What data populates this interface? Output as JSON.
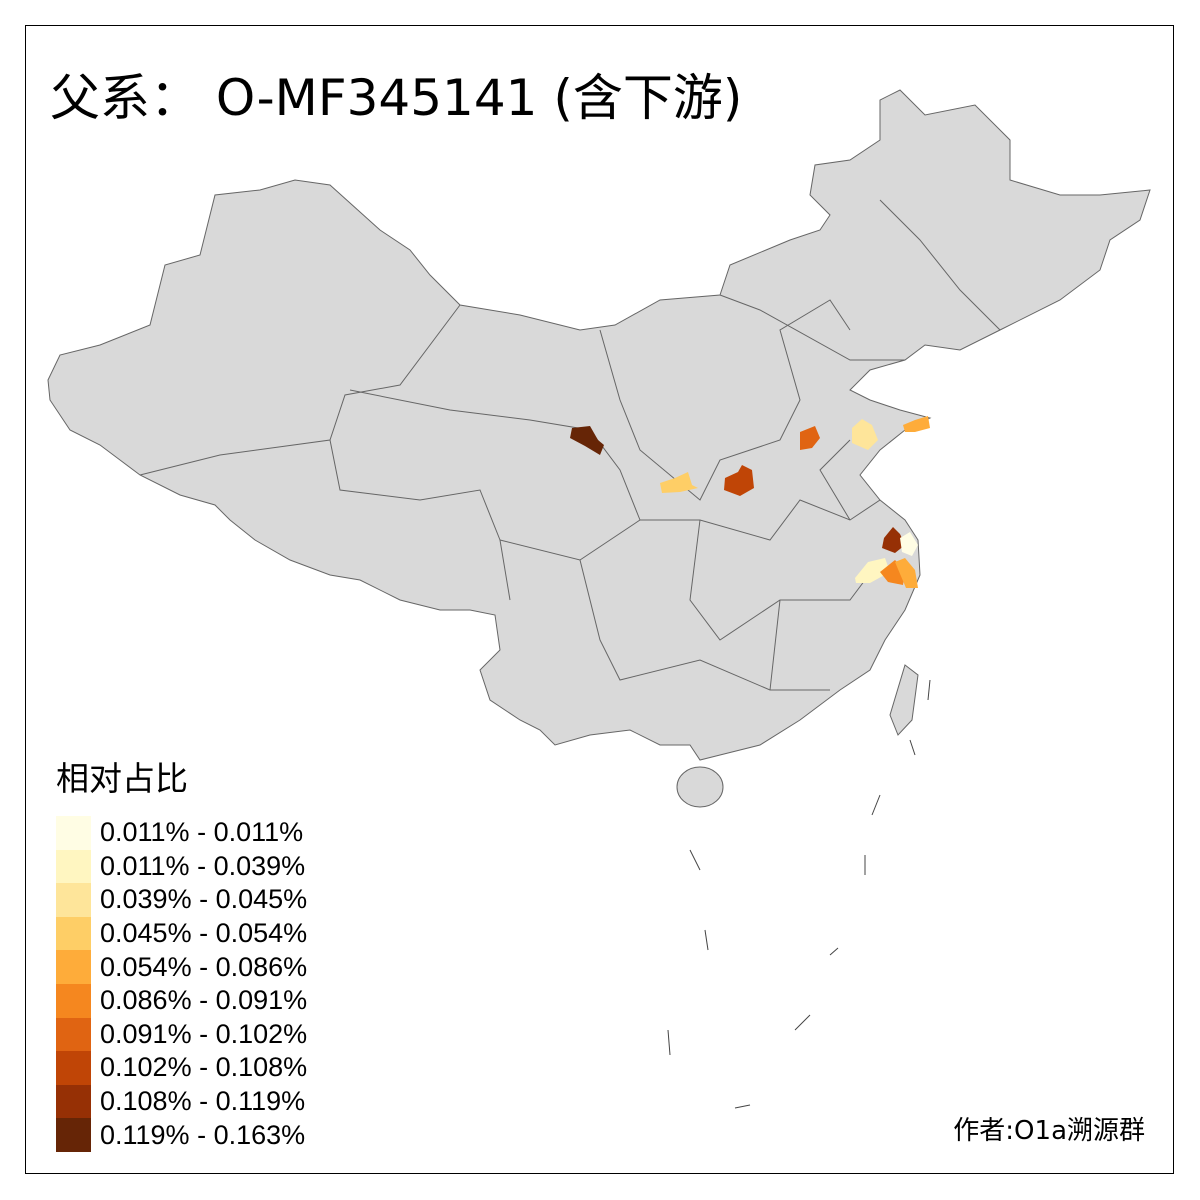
{
  "title": "父系： O-MF345141 (含下游)",
  "legend": {
    "title": "相对占比",
    "items": [
      {
        "label": "0.011% - 0.011%",
        "color": "#FFFDE4"
      },
      {
        "label": "0.011% - 0.039%",
        "color": "#FFF6C1"
      },
      {
        "label": "0.039% - 0.045%",
        "color": "#FEE59A"
      },
      {
        "label": "0.045% - 0.054%",
        "color": "#FECE66"
      },
      {
        "label": "0.054% - 0.086%",
        "color": "#FEAC3A"
      },
      {
        "label": "0.086% - 0.091%",
        "color": "#F5871F"
      },
      {
        "label": "0.091% - 0.102%",
        "color": "#E06412"
      },
      {
        "label": "0.102% - 0.108%",
        "color": "#C04506"
      },
      {
        "label": "0.108% - 0.119%",
        "color": "#963005"
      },
      {
        "label": "0.119% - 0.163%",
        "color": "#662506"
      }
    ]
  },
  "map": {
    "base_color": "#D9D9D9",
    "border_color": "#666666"
  },
  "author": "作者:O1a溯源群"
}
